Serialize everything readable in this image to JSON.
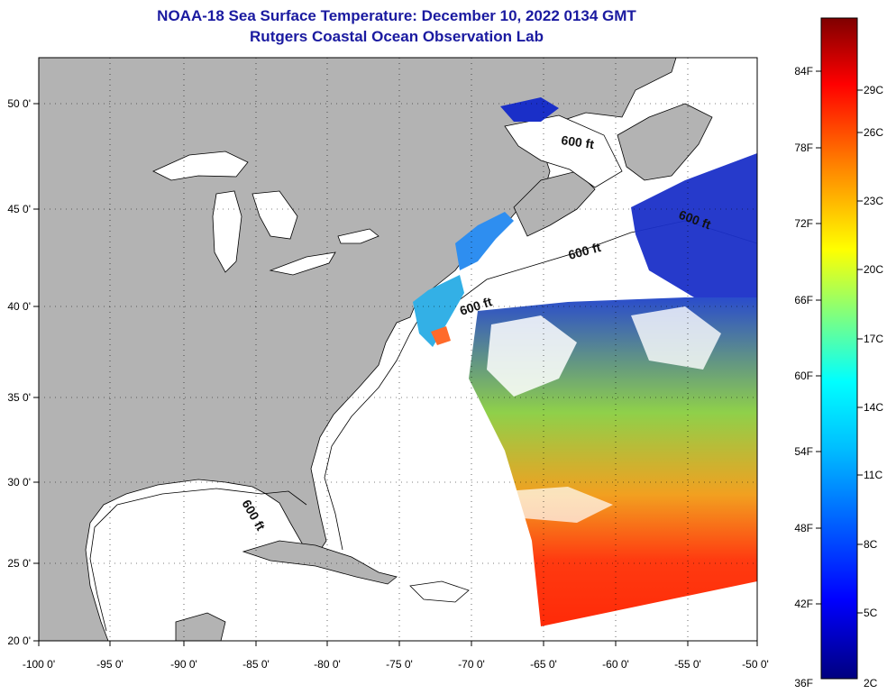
{
  "title_line1": "NOAA-18 Sea Surface Temperature:  December 10, 2022 0134 GMT",
  "title_line2": "Rutgers Coastal Ocean Observation Lab",
  "map": {
    "lon_range": [
      -100,
      -50
    ],
    "lat_range": [
      20,
      52.5
    ],
    "lon_ticks": [
      "-100 0'",
      "-95 0'",
      "-90 0'",
      "-85 0'",
      "-80 0'",
      "-75 0'",
      "-70 0'",
      "-65 0'",
      "-60 0'",
      "-55 0'",
      "-50 0'"
    ],
    "lat_ticks": [
      "50 0'",
      "45 0'",
      "40 0'",
      "35 0'",
      "30 0'",
      "25 0'",
      "20 0'"
    ],
    "grid": "dotted",
    "land_color": "#b3b3b3",
    "no_data_color": "#ffffff",
    "depth_contour_labels": [
      "600 ft",
      "600 ft",
      "600 ft",
      "600 ft",
      "600 ft"
    ]
  },
  "colorbar": {
    "fahrenheit_labels": [
      "84F",
      "78F",
      "72F",
      "66F",
      "60F",
      "54F",
      "48F",
      "42F",
      "36F"
    ],
    "celsius_labels": [
      "29C",
      "26C",
      "23C",
      "20C",
      "17C",
      "14C",
      "11C",
      "8C",
      "5C",
      "2C"
    ],
    "colors": [
      "#7f0000",
      "#ff0000",
      "#ff7f00",
      "#ffff00",
      "#7fff7f",
      "#00ffff",
      "#007fff",
      "#0000ff",
      "#00007f"
    ]
  }
}
